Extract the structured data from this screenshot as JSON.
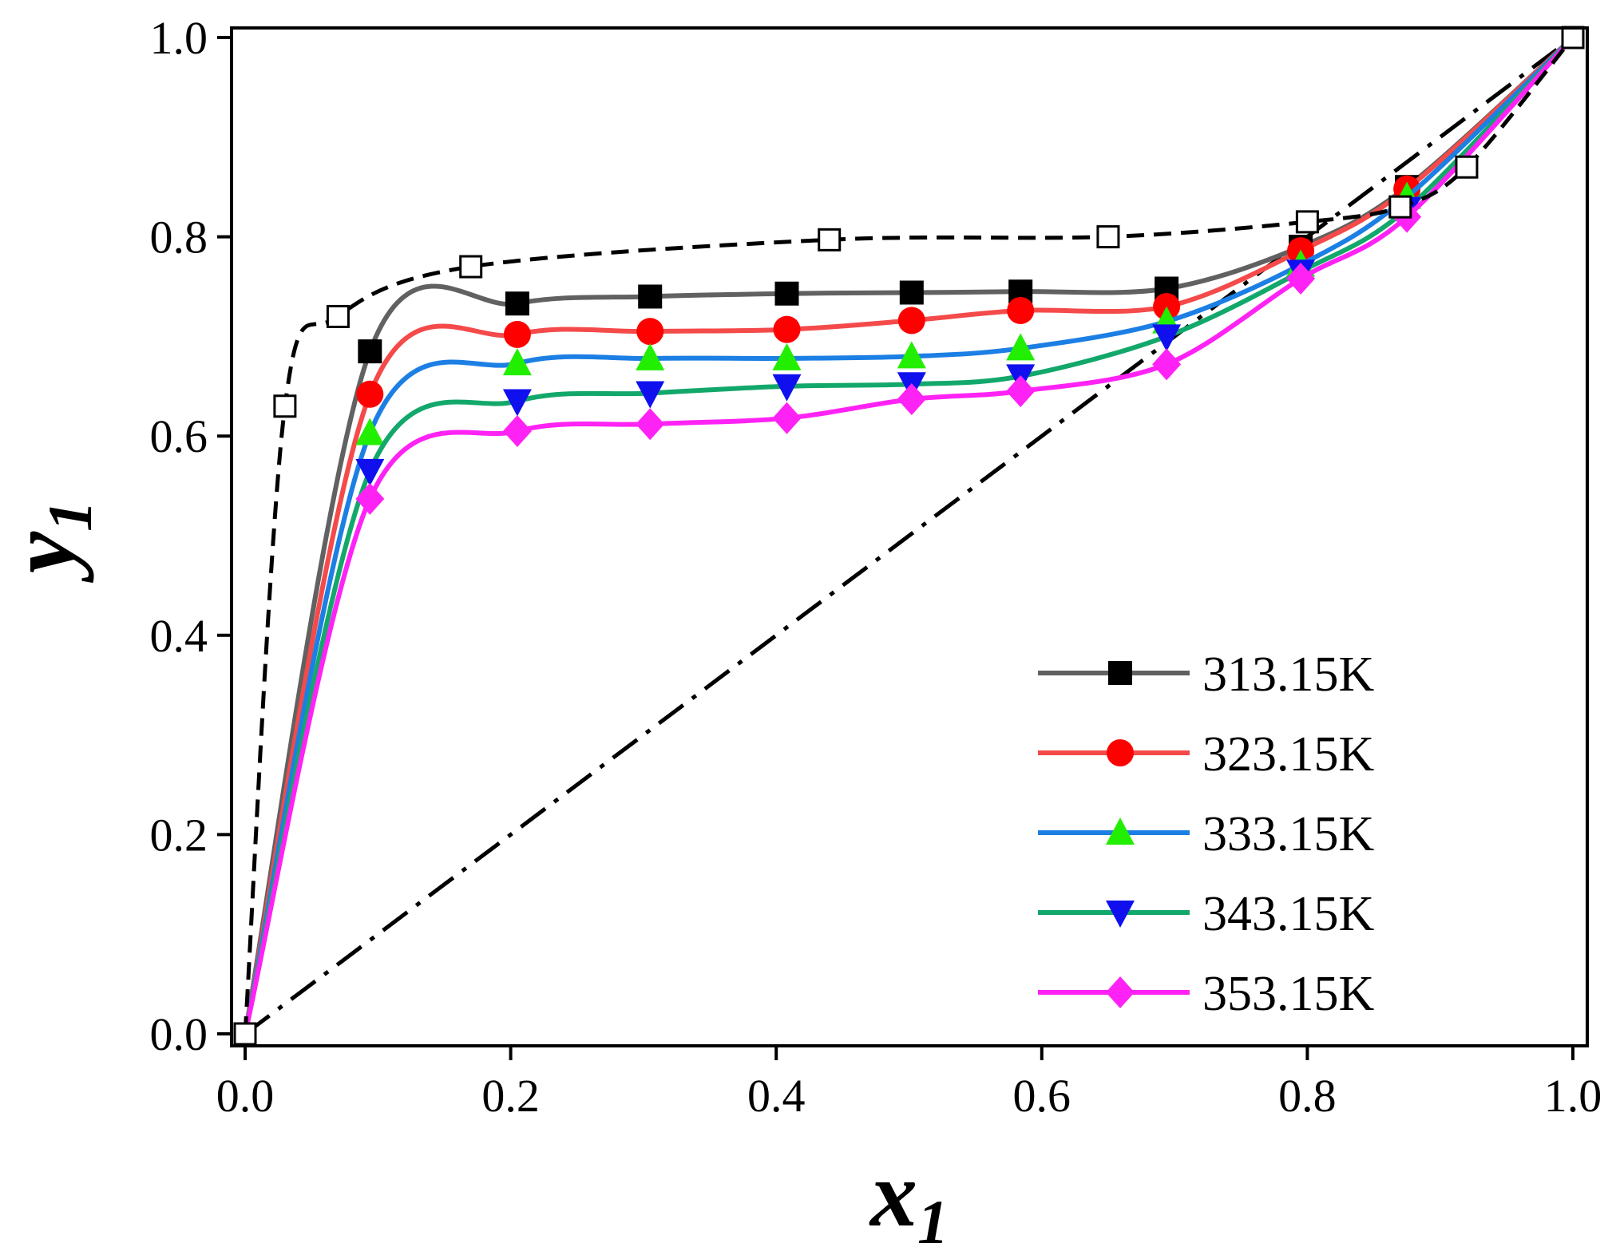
{
  "chart_data": {
    "type": "line",
    "title": "",
    "xlabel": "x",
    "xlabel_sub": "1",
    "ylabel": "y",
    "ylabel_sub": "1",
    "xlim": [
      0.0,
      1.0
    ],
    "ylim": [
      0.0,
      1.0
    ],
    "x_ticks": [
      "0.0",
      "0.2",
      "0.4",
      "0.6",
      "0.8",
      "1.0"
    ],
    "y_ticks": [
      "0.0",
      "0.2",
      "0.4",
      "0.6",
      "0.8",
      "1.0"
    ],
    "legend_position": "bottom-right",
    "grid": false,
    "series": [
      {
        "name": "313.15K",
        "color": "#616161",
        "marker": "square",
        "points": [
          [
            0.0,
            0.0
          ],
          [
            0.094,
            0.685
          ],
          [
            0.205,
            0.733
          ],
          [
            0.305,
            0.74
          ],
          [
            0.408,
            0.743
          ],
          [
            0.502,
            0.744
          ],
          [
            0.584,
            0.745
          ],
          [
            0.694,
            0.748
          ],
          [
            0.795,
            0.79
          ],
          [
            0.875,
            0.85
          ],
          [
            1.0,
            1.0
          ]
        ]
      },
      {
        "name": "323.15K",
        "color": "#f44a4a",
        "marker": "circle",
        "points": [
          [
            0.0,
            0.0
          ],
          [
            0.094,
            0.642
          ],
          [
            0.205,
            0.702
          ],
          [
            0.305,
            0.705
          ],
          [
            0.408,
            0.707
          ],
          [
            0.502,
            0.716
          ],
          [
            0.584,
            0.726
          ],
          [
            0.694,
            0.73
          ],
          [
            0.795,
            0.786
          ],
          [
            0.875,
            0.848
          ],
          [
            1.0,
            1.0
          ]
        ]
      },
      {
        "name": "333.15K",
        "color": "#1c7fe4",
        "marker": "triangle-up",
        "points": [
          [
            0.0,
            0.0
          ],
          [
            0.094,
            0.603
          ],
          [
            0.205,
            0.673
          ],
          [
            0.305,
            0.678
          ],
          [
            0.408,
            0.678
          ],
          [
            0.502,
            0.68
          ],
          [
            0.584,
            0.688
          ],
          [
            0.694,
            0.715
          ],
          [
            0.795,
            0.772
          ],
          [
            0.875,
            0.84
          ],
          [
            1.0,
            1.0
          ]
        ]
      },
      {
        "name": "343.15K",
        "color": "#13a86b",
        "marker": "triangle-down",
        "points": [
          [
            0.0,
            0.0
          ],
          [
            0.094,
            0.565
          ],
          [
            0.205,
            0.635
          ],
          [
            0.305,
            0.643
          ],
          [
            0.408,
            0.65
          ],
          [
            0.502,
            0.652
          ],
          [
            0.584,
            0.66
          ],
          [
            0.694,
            0.7
          ],
          [
            0.795,
            0.765
          ],
          [
            0.875,
            0.828
          ],
          [
            1.0,
            1.0
          ]
        ]
      },
      {
        "name": "353.15K",
        "color": "#ff22f5",
        "marker": "diamond",
        "points": [
          [
            0.0,
            0.0
          ],
          [
            0.094,
            0.537
          ],
          [
            0.205,
            0.605
          ],
          [
            0.305,
            0.612
          ],
          [
            0.408,
            0.618
          ],
          [
            0.502,
            0.637
          ],
          [
            0.584,
            0.645
          ],
          [
            0.694,
            0.672
          ],
          [
            0.795,
            0.758
          ],
          [
            0.875,
            0.82
          ],
          [
            1.0,
            1.0
          ]
        ]
      }
    ],
    "reference_curve": {
      "style": "dashed",
      "marker": "open-square",
      "color": "#000000",
      "points": [
        [
          0.0,
          0.0
        ],
        [
          0.03,
          0.63
        ],
        [
          0.07,
          0.72
        ],
        [
          0.17,
          0.77
        ],
        [
          0.44,
          0.797
        ],
        [
          0.65,
          0.8
        ],
        [
          0.8,
          0.815
        ],
        [
          0.87,
          0.83
        ],
        [
          0.92,
          0.87
        ],
        [
          1.0,
          1.0
        ]
      ]
    },
    "diagonal": {
      "style": "dash-dot",
      "color": "#000000",
      "points": [
        [
          0.0,
          0.0
        ],
        [
          1.0,
          1.0
        ]
      ]
    }
  }
}
